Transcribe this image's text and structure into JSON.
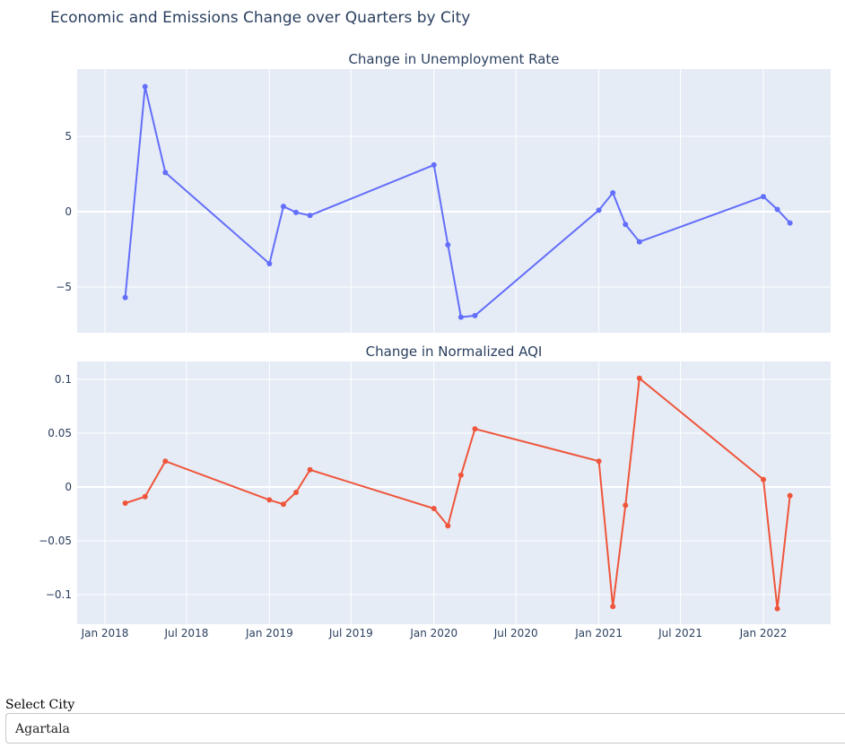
{
  "page_title": "Economic and Emissions Change over Quarters by City",
  "colors": {
    "plot_bg": "#e5ecf6",
    "grid": "#ffffff",
    "text": "#2a3f5f",
    "unemployment": "#636efa",
    "aqi": "#ef553b"
  },
  "selector": {
    "label": "Select City",
    "value": "Agartala"
  },
  "chart_data": [
    {
      "type": "line",
      "title": "Change in Unemployment Rate",
      "x": [
        "2018-02-15",
        "2018-03-31",
        "2018-05-15",
        "2019-01-01",
        "2019-02-01",
        "2019-03-01",
        "2019-04-01",
        "2020-01-01",
        "2020-02-01",
        "2020-03-01",
        "2020-04-01",
        "2021-01-01",
        "2021-02-01",
        "2021-03-01",
        "2021-04-01",
        "2022-01-01",
        "2022-02-01",
        "2022-03-01"
      ],
      "y": [
        -5.7,
        8.3,
        2.6,
        -3.45,
        0.35,
        -0.05,
        -0.25,
        3.1,
        -2.2,
        -7.0,
        -6.9,
        0.1,
        1.25,
        -0.85,
        -2.0,
        1.0,
        0.15,
        -0.75
      ],
      "ytick_labels": [
        "5",
        "0",
        "−5"
      ],
      "xtick_labels": [
        "Jan 2018",
        "Jul 2018",
        "Jan 2019",
        "Jul 2019",
        "Jan 2020",
        "Jul 2020",
        "Jan 2021",
        "Jul 2021",
        "Jan 2022"
      ],
      "series_color": "#636efa"
    },
    {
      "type": "line",
      "title": "Change in Normalized AQI",
      "x": [
        "2018-02-15",
        "2018-03-31",
        "2018-05-15",
        "2019-01-01",
        "2019-02-01",
        "2019-03-01",
        "2019-04-01",
        "2020-01-01",
        "2020-02-01",
        "2020-03-01",
        "2020-04-01",
        "2021-01-01",
        "2021-02-01",
        "2021-03-01",
        "2021-04-01",
        "2022-01-01",
        "2022-02-01",
        "2022-03-01"
      ],
      "y": [
        -0.015,
        -0.009,
        0.024,
        -0.012,
        -0.016,
        -0.005,
        0.016,
        -0.02,
        -0.036,
        0.011,
        0.054,
        0.024,
        -0.111,
        -0.017,
        0.101,
        0.007,
        -0.113,
        -0.008
      ],
      "ytick_labels": [
        "0.1",
        "0.05",
        "0",
        "−0.05",
        "−0.1"
      ],
      "xtick_labels": [
        "Jan 2018",
        "Jul 2018",
        "Jan 2019",
        "Jul 2019",
        "Jan 2020",
        "Jul 2020",
        "Jan 2021",
        "Jul 2021",
        "Jan 2022"
      ],
      "series_color": "#ef553b"
    }
  ]
}
